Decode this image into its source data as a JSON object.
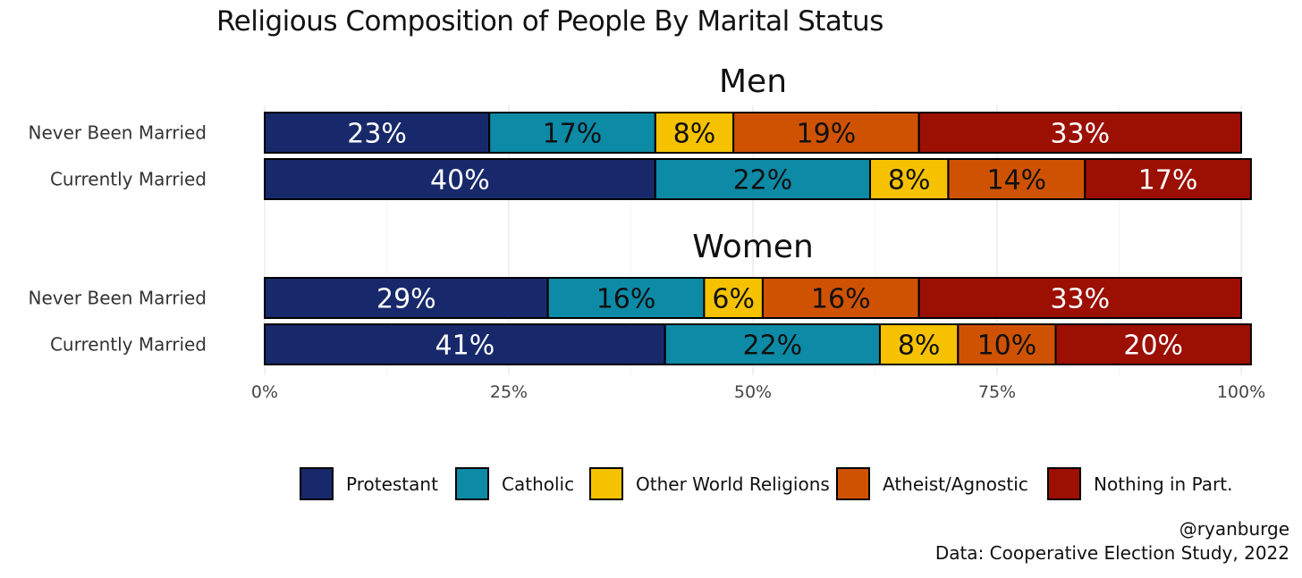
{
  "title": "Religious Composition of People By Marital Status",
  "credit": {
    "handle": "@ryanburge",
    "source": "Data: Cooperative Election Study, 2022"
  },
  "chart_data": {
    "type": "bar",
    "orientation": "horizontal",
    "stacked": true,
    "title": "Religious Composition of People By Marital Status",
    "xlabel": "",
    "ylabel": "",
    "xlim": [
      0,
      100
    ],
    "x_ticks": [
      "0%",
      "25%",
      "50%",
      "75%",
      "100%"
    ],
    "x_tick_values": [
      0,
      25,
      50,
      75,
      100
    ],
    "grid": true,
    "legend_position": "bottom",
    "legend": [
      {
        "name": "Protestant",
        "color": "#18296b"
      },
      {
        "name": "Catholic",
        "color": "#0c8aa6"
      },
      {
        "name": "Other World Religions",
        "color": "#f6c200"
      },
      {
        "name": "Atheist/Agnostic",
        "color": "#cf5203"
      },
      {
        "name": "Nothing in Part.",
        "color": "#9c0f03"
      }
    ],
    "panels": [
      {
        "name": "Men",
        "rows": [
          {
            "label": "Never Been Married",
            "values": [
              23,
              17,
              8,
              19,
              33
            ],
            "labels": [
              "23%",
              "17%",
              "8%",
              "19%",
              "33%"
            ]
          },
          {
            "label": "Currently Married",
            "values": [
              40,
              22,
              8,
              14,
              17
            ],
            "labels": [
              "40%",
              "22%",
              "8%",
              "14%",
              "17%"
            ]
          }
        ]
      },
      {
        "name": "Women",
        "rows": [
          {
            "label": "Never Been Married",
            "values": [
              29,
              16,
              6,
              16,
              33
            ],
            "labels": [
              "29%",
              "16%",
              "6%",
              "16%",
              "33%"
            ]
          },
          {
            "label": "Currently Married",
            "values": [
              41,
              22,
              8,
              10,
              20
            ],
            "labels": [
              "41%",
              "22%",
              "8%",
              "10%",
              "20%"
            ]
          }
        ]
      }
    ],
    "label_text_colors": [
      "#ffffff",
      "#111111",
      "#111111",
      "#111111",
      "#ffffff"
    ]
  }
}
